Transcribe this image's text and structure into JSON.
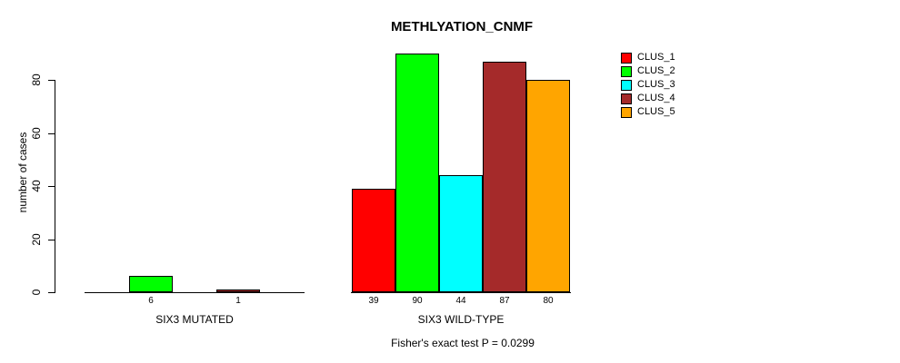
{
  "chart_data": {
    "type": "bar",
    "title": "METHLYATION_CNMF",
    "ylabel": "number of cases",
    "xlabel": "",
    "yticks": [
      0,
      20,
      40,
      60,
      80
    ],
    "ylim": [
      0,
      90
    ],
    "grid": false,
    "legend_position": "right",
    "categories": [
      "SIX3 MUTATED",
      "SIX3 WILD-TYPE"
    ],
    "series": [
      {
        "name": "CLUS_1",
        "color": "#ff0000",
        "values": [
          0,
          39
        ]
      },
      {
        "name": "CLUS_2",
        "color": "#00ff00",
        "values": [
          6,
          90
        ]
      },
      {
        "name": "CLUS_3",
        "color": "#00ffff",
        "values": [
          0,
          44
        ]
      },
      {
        "name": "CLUS_4",
        "color": "#a52a2a",
        "values": [
          1,
          87
        ]
      },
      {
        "name": "CLUS_5",
        "color": "#ffa500",
        "values": [
          0,
          80
        ]
      }
    ],
    "bar_value_labels": {
      "SIX3 MUTATED": [
        6,
        1
      ],
      "SIX3 WILD-TYPE": [
        39,
        90,
        44,
        87,
        80
      ]
    },
    "annotation": "Fisher's exact test P = 0.0299",
    "axis_color": "#000000",
    "bar_border_color": "#000000"
  }
}
